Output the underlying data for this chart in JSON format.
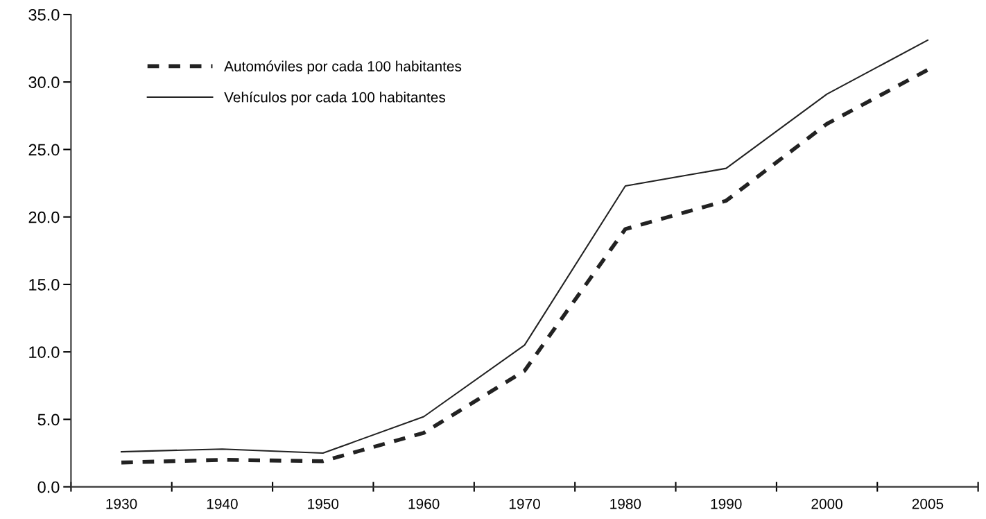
{
  "chart_data": {
    "type": "line",
    "categories": [
      "1930",
      "1940",
      "1950",
      "1960",
      "1970",
      "1980",
      "1990",
      "2000",
      "2005"
    ],
    "series": [
      {
        "name": "Automóviles por cada 100 habitantes",
        "color": "#222222",
        "line_style": "dashed",
        "values": [
          1.8,
          2.0,
          1.9,
          4.0,
          8.6,
          19.1,
          21.2,
          26.9,
          30.9
        ]
      },
      {
        "name": "Vehículos por cada 100 habitantes",
        "color": "#222222",
        "line_style": "solid",
        "values": [
          2.6,
          2.8,
          2.5,
          5.2,
          10.5,
          22.3,
          23.6,
          29.1,
          33.1
        ]
      }
    ],
    "ylim": [
      0,
      35
    ],
    "yticks": [
      {
        "value": 0,
        "label": "0.0"
      },
      {
        "value": 5,
        "label": "5.0"
      },
      {
        "value": 10,
        "label": "10.0"
      },
      {
        "value": 15,
        "label": "15.0"
      },
      {
        "value": 20,
        "label": "20.0"
      },
      {
        "value": 25,
        "label": "25.0"
      },
      {
        "value": 30,
        "label": "30.0"
      },
      {
        "value": 35,
        "label": "35.0"
      }
    ],
    "grid": false,
    "legend": "top left",
    "marker": "none"
  }
}
